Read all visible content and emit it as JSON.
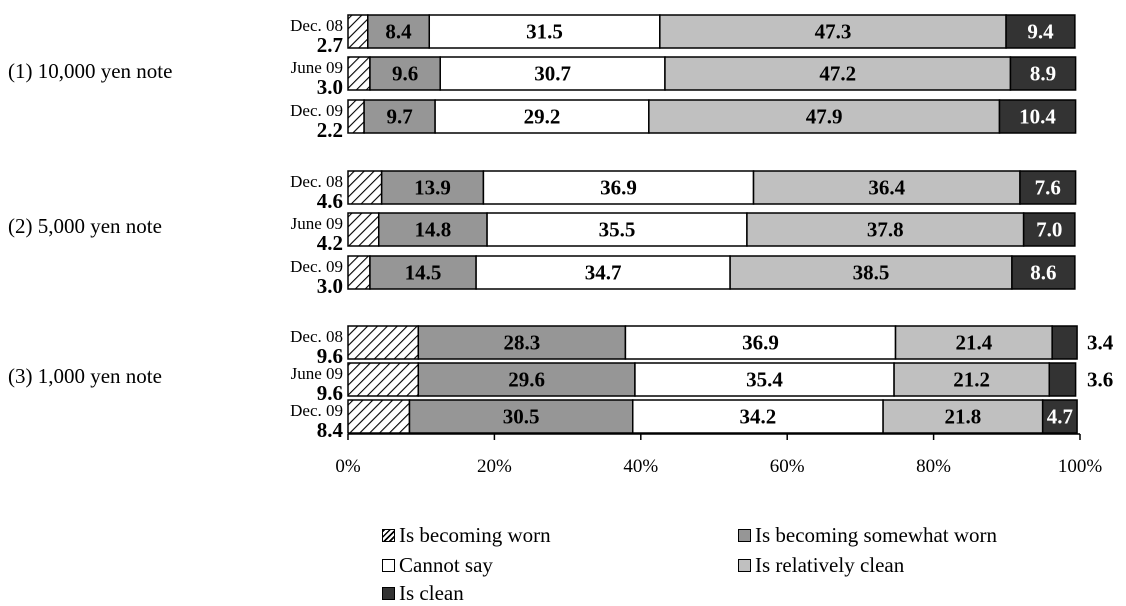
{
  "chart_data": {
    "type": "bar",
    "orientation": "horizontal",
    "stacked": true,
    "xlim": [
      0,
      100
    ],
    "x_tick_labels": [
      "0%",
      "20%",
      "40%",
      "60%",
      "80%",
      "100%"
    ],
    "grid": false,
    "legend_position": "bottom",
    "series": [
      {
        "name": "Is becoming worn",
        "color": "#ffffff",
        "pattern": "hatch"
      },
      {
        "name": "Is becoming somewhat worn",
        "color": "#969696"
      },
      {
        "name": "Cannot say",
        "color": "#ffffff"
      },
      {
        "name": "Is relatively clean",
        "color": "#c0c0c0"
      },
      {
        "name": "Is clean",
        "color": "#333333"
      }
    ],
    "groups": [
      {
        "label": "(1) 10,000 yen note",
        "bars": [
          {
            "period": "Dec. 08",
            "values": [
              2.7,
              8.4,
              31.5,
              47.3,
              9.4
            ]
          },
          {
            "period": "June 09",
            "values": [
              3.0,
              9.6,
              30.7,
              47.2,
              8.9
            ]
          },
          {
            "period": "Dec. 09",
            "values": [
              2.2,
              9.7,
              29.2,
              47.9,
              10.4
            ]
          }
        ]
      },
      {
        "label": "(2) 5,000 yen note",
        "bars": [
          {
            "period": "Dec. 08",
            "values": [
              4.6,
              13.9,
              36.9,
              36.4,
              7.6
            ]
          },
          {
            "period": "June 09",
            "values": [
              4.2,
              14.8,
              35.5,
              37.8,
              7.0
            ]
          },
          {
            "period": "Dec. 09",
            "values": [
              3.0,
              14.5,
              34.7,
              38.5,
              8.6
            ]
          }
        ]
      },
      {
        "label": "(3) 1,000 yen note",
        "bars": [
          {
            "period": "Dec. 08",
            "values": [
              9.6,
              28.3,
              36.9,
              21.4,
              3.4
            ]
          },
          {
            "period": "June 09",
            "values": [
              9.6,
              29.6,
              35.4,
              21.2,
              3.6
            ]
          },
          {
            "period": "Dec. 09",
            "values": [
              8.4,
              30.5,
              34.2,
              21.8,
              4.7
            ]
          }
        ]
      }
    ]
  }
}
